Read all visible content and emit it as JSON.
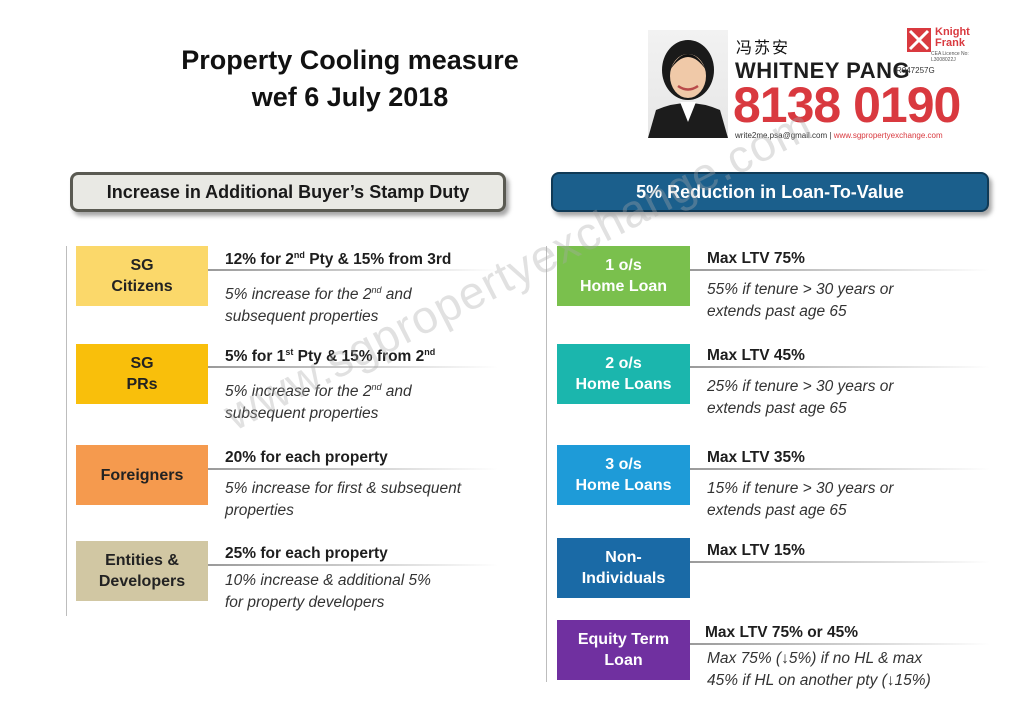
{
  "title": {
    "line1": "Property Cooling measure",
    "line2": "wef 6 July 2018"
  },
  "agent": {
    "chinese_name": "冯苏安",
    "name": "WHITNEY PANG",
    "reg_no": "R047257G",
    "phone": "8138 0190",
    "email": "write2me.psa@gmail.com",
    "separator": "|",
    "website": "www.sgpropertyexchange.com",
    "brand_line1": "Knight",
    "brand_line2": "Frank",
    "licence": "CEA Licence No: L3008022J"
  },
  "watermark": "www.sgpropertyexchange.com",
  "absd": {
    "heading": "Increase in Additional Buyer’s Stamp Duty",
    "rows": [
      {
        "label1": "SG",
        "label2": "Citizens",
        "color": "#fbd86a",
        "head_a": "12% for 2",
        "head_sup1": "nd",
        "head_b": " Pty &  15% from 3rd",
        "head_sup2": "",
        "note_a": "5% increase for the 2",
        "note_sup": "nd",
        "note_b": " and",
        "note_line2": "subsequent properties"
      },
      {
        "label1": "SG",
        "label2": "PRs",
        "color": "#f9bf0b",
        "head_a": "5% for 1",
        "head_sup1": "st",
        "head_b": " Pty & 15% from 2",
        "head_sup2": "nd",
        "note_a": "5% increase for the 2",
        "note_sup": "nd",
        "note_b": " and",
        "note_line2": "subsequent properties"
      },
      {
        "label1": "Foreigners",
        "label2": "",
        "color": "#f59a4e",
        "head_a": "20% for each property",
        "head_sup1": "",
        "head_b": "",
        "head_sup2": "",
        "note_a": "5% increase for first & subsequent",
        "note_sup": "",
        "note_b": "",
        "note_line2": "properties"
      },
      {
        "label1": "Entities &",
        "label2": "Developers",
        "color": "#d1c7a3",
        "head_a": "25% for each property",
        "head_sup1": "",
        "head_b": "",
        "head_sup2": "",
        "note_a": "10% increase & additional 5%",
        "note_sup": "",
        "note_b": "",
        "note_line2": "for property developers"
      }
    ]
  },
  "ltv": {
    "heading": "5% Reduction in Loan-To-Value",
    "rows": [
      {
        "label1": "1 o/s",
        "label2": "Home Loan",
        "color": "#7ac04d",
        "head": "Max LTV 75%",
        "note1": "55% if tenure > 30 years or",
        "note2": "extends past age 65"
      },
      {
        "label1": "2 o/s",
        "label2": "Home  Loans",
        "color": "#1bb6ad",
        "head": "Max LTV 45%",
        "note1": "25% if tenure > 30 years or",
        "note2": "extends past age 65"
      },
      {
        "label1": "3 o/s",
        "label2": "Home Loans",
        "color": "#1e9bd8",
        "head": "Max LTV 35%",
        "note1": "15% if tenure > 30 years or",
        "note2": "extends past age 65"
      },
      {
        "label1": "Non-",
        "label2": "Individuals",
        "color": "#1a6aa6",
        "head": "Max LTV 15%",
        "note1": "",
        "note2": ""
      },
      {
        "label1": "Equity Term",
        "label2": "Loan",
        "color": "#7030a0",
        "head": "Max LTV 75% or 45%",
        "note1": "Max 75% (↓5%) if no HL & max",
        "note2": "45% if HL on another pty (↓15%)"
      }
    ]
  }
}
